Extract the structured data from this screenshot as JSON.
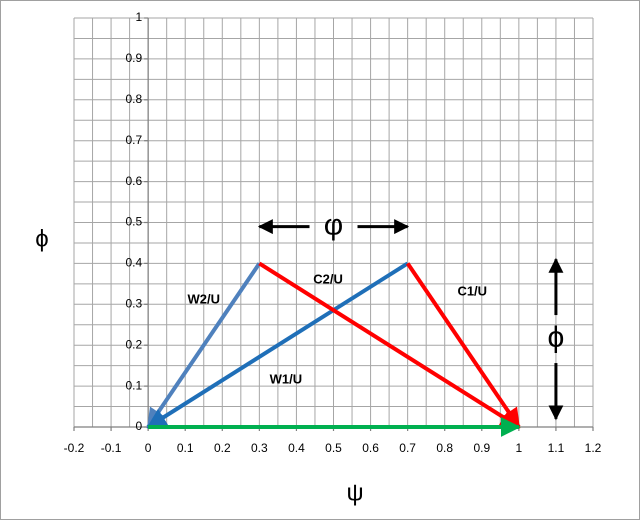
{
  "chart_data": {
    "type": "vector",
    "x_label": "ψ",
    "y_label": "ϕ",
    "xlim": [
      -0.2,
      1.2
    ],
    "ylim": [
      0,
      1
    ],
    "xticks": [
      -0.2,
      -0.1,
      0,
      0.1,
      0.2,
      0.3,
      0.4,
      0.5,
      0.6,
      0.7,
      0.8,
      0.9,
      1,
      1.1,
      1.2
    ],
    "yticks": [
      0,
      0.1,
      0.2,
      0.3,
      0.4,
      0.5,
      0.6,
      0.7,
      0.8,
      0.9,
      1
    ],
    "grid": true,
    "minor_grid": true,
    "series": [
      {
        "name": "W2/U",
        "color": "#4f81bd",
        "x": [
          0.3,
          0
        ],
        "y": [
          0.4,
          0
        ]
      },
      {
        "name": "W1/U",
        "color": "#1f6fb8",
        "x": [
          0.7,
          0
        ],
        "y": [
          0.4,
          0
        ]
      },
      {
        "name": "C2/U",
        "color": "#ff0000",
        "x": [
          0.3,
          1
        ],
        "y": [
          0.4,
          0
        ]
      },
      {
        "name": "C1/U",
        "color": "#ff0000",
        "x": [
          0.7,
          1
        ],
        "y": [
          0.4,
          0
        ]
      },
      {
        "color": "#00b050",
        "x": [
          0,
          1
        ],
        "y": [
          0,
          0
        ]
      }
    ],
    "annotations": [
      {
        "text": "φ",
        "x": [
          0.3,
          0.7
        ],
        "y": [
          0.49,
          0.49
        ]
      },
      {
        "text": "ϕ",
        "x": [
          1.1,
          1.1
        ],
        "y": [
          0.41,
          0.02
        ]
      }
    ]
  }
}
